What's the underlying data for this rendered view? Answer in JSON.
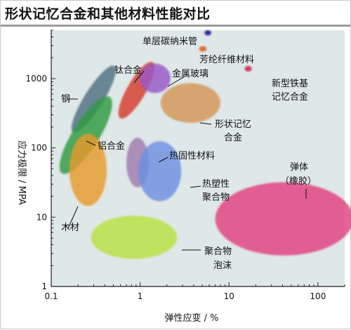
{
  "chart_data": {
    "type": "scatter",
    "title": "形状记忆合金和其他材料性能对比",
    "xlabel": "弹性应变 / %",
    "ylabel": "应力极限 / MPA",
    "xscale": "log",
    "yscale": "log",
    "xlim": [
      0.1,
      200
    ],
    "ylim": [
      1,
      5000
    ],
    "xticks": [
      "0.1",
      "1",
      "10",
      "100"
    ],
    "yticks": [
      "1",
      "10",
      "100",
      "1000"
    ],
    "grid": false,
    "background_color": "#dfe8e8",
    "regions": [
      {
        "label": "钢",
        "x": [
          0.18,
          0.5
        ],
        "y": [
          160,
          1600
        ],
        "angle": -58,
        "color": "#4f6f80"
      },
      {
        "label": "铝合金",
        "x": [
          0.12,
          0.5
        ],
        "y": [
          45,
          520
        ],
        "angle": -58,
        "color": "#2f9a3f"
      },
      {
        "label": "钛合金",
        "x": [
          0.55,
          1.5
        ],
        "y": [
          280,
          1650
        ],
        "angle": -60,
        "color": "#d63a2a"
      },
      {
        "label": "金属玻璃",
        "x": [
          0.98,
          2.2
        ],
        "y": [
          620,
          1650
        ],
        "angle": 0,
        "color": "#9a58c8"
      },
      {
        "label": "形状记忆合金",
        "x": [
          1.7,
          8
        ],
        "y": [
          230,
          860
        ],
        "angle": 0,
        "color": "#d49556"
      },
      {
        "label": "单层碳纳米管",
        "x": [
          5.3,
          6.3
        ],
        "y": [
          4200,
          5000
        ],
        "angle": 0,
        "color": "#2b2aa0"
      },
      {
        "label": "芳纶纤维材料",
        "x": [
          4.6,
          5.6
        ],
        "y": [
          2450,
          2950
        ],
        "angle": 0,
        "color": "#e07030"
      },
      {
        "label": "新型铁基记忆合金",
        "x": [
          15,
          18
        ],
        "y": [
          1270,
          1520
        ],
        "angle": 0,
        "color": "#d8305a"
      },
      {
        "label": "木材",
        "x": [
          0.16,
          0.42
        ],
        "y": [
          14.5,
          160
        ],
        "angle": 0,
        "color": "#e89a2a"
      },
      {
        "label": "热固性材料",
        "x": [
          0.7,
          1.25
        ],
        "y": [
          27,
          140
        ],
        "angle": 0,
        "color": "#a07ab0"
      },
      {
        "label": "热塑性聚合物",
        "x": [
          0.95,
          2.9
        ],
        "y": [
          17,
          125
        ],
        "angle": 0,
        "color": "#6e8fe0"
      },
      {
        "label": "聚合物泡沫",
        "x": [
          0.28,
          2.6
        ],
        "y": [
          2.5,
          10.5
        ],
        "angle": 0,
        "color": "#b8e040"
      },
      {
        "label": "弹体（橡胶）",
        "x": [
          7,
          250
        ],
        "y": [
          2.8,
          32
        ],
        "angle": 0,
        "color": "#e0407e"
      }
    ],
    "label_lines": [
      "单层碳纳米管",
      "芳纶纤维材料",
      "新型铁基",
      "记忆合金",
      "钢",
      "钛合金",
      "金属玻璃",
      "形状记忆",
      "合金",
      "铝合金",
      "热固性材料",
      "弹体",
      "（橡胶）",
      "热塑性",
      "聚合物",
      "木材",
      "聚合物",
      "泡沫"
    ]
  }
}
